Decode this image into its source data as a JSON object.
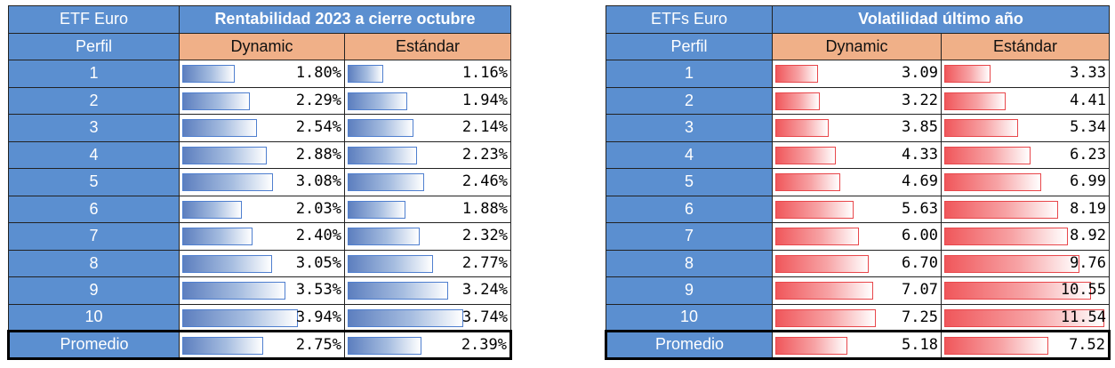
{
  "rent": {
    "header_label": "ETF Euro",
    "title": "Rentabilidad 2023 a cierre octubre",
    "perfil_label": "Perfil",
    "col1": "Dynamic",
    "col2": "Estándar",
    "rows": [
      {
        "p": "1",
        "d": 1.8,
        "e": 1.16,
        "dt": "1.80%",
        "et": "1.16%"
      },
      {
        "p": "2",
        "d": 2.29,
        "e": 1.94,
        "dt": "2.29%",
        "et": "1.94%"
      },
      {
        "p": "3",
        "d": 2.54,
        "e": 2.14,
        "dt": "2.54%",
        "et": "2.14%"
      },
      {
        "p": "4",
        "d": 2.88,
        "e": 2.23,
        "dt": "2.88%",
        "et": "2.23%"
      },
      {
        "p": "5",
        "d": 3.08,
        "e": 2.46,
        "dt": "3.08%",
        "et": "2.46%"
      },
      {
        "p": "6",
        "d": 2.03,
        "e": 1.88,
        "dt": "2.03%",
        "et": "1.88%"
      },
      {
        "p": "7",
        "d": 2.4,
        "e": 2.32,
        "dt": "2.40%",
        "et": "2.32%"
      },
      {
        "p": "8",
        "d": 3.05,
        "e": 2.77,
        "dt": "3.05%",
        "et": "2.77%"
      },
      {
        "p": "9",
        "d": 3.53,
        "e": 3.24,
        "dt": "3.53%",
        "et": "3.24%"
      },
      {
        "p": "10",
        "d": 3.94,
        "e": 3.74,
        "dt": "3.94%",
        "et": "3.74%"
      }
    ],
    "avg": {
      "p": "Promedio",
      "d": 2.75,
      "e": 2.39,
      "dt": "2.75%",
      "et": "2.39%"
    },
    "bar_color": "#5d7fbf"
  },
  "vol": {
    "header_label": "ETFs Euro",
    "title": "Volatilidad último año",
    "perfil_label": "Perfil",
    "col1": "Dynamic",
    "col2": "Estándar",
    "rows": [
      {
        "p": "1",
        "d": 3.09,
        "e": 3.33,
        "dt": "3.09",
        "et": "3.33"
      },
      {
        "p": "2",
        "d": 3.22,
        "e": 4.41,
        "dt": "3.22",
        "et": "4.41"
      },
      {
        "p": "3",
        "d": 3.85,
        "e": 5.34,
        "dt": "3.85",
        "et": "5.34"
      },
      {
        "p": "4",
        "d": 4.33,
        "e": 6.23,
        "dt": "4.33",
        "et": "6.23"
      },
      {
        "p": "5",
        "d": 4.69,
        "e": 6.99,
        "dt": "4.69",
        "et": "6.99"
      },
      {
        "p": "6",
        "d": 5.63,
        "e": 8.19,
        "dt": "5.63",
        "et": "8.19"
      },
      {
        "p": "7",
        "d": 6.0,
        "e": 8.92,
        "dt": "6.00",
        "et": "8.92"
      },
      {
        "p": "8",
        "d": 6.7,
        "e": 9.76,
        "dt": "6.70",
        "et": "9.76"
      },
      {
        "p": "9",
        "d": 7.07,
        "e": 10.55,
        "dt": "7.07",
        "et": "10.55"
      },
      {
        "p": "10",
        "d": 7.25,
        "e": 11.54,
        "dt": "7.25",
        "et": "11.54"
      }
    ],
    "avg": {
      "p": "Promedio",
      "d": 5.18,
      "e": 7.52,
      "dt": "5.18",
      "et": "7.52"
    },
    "bar_color": "#f0575b"
  }
}
